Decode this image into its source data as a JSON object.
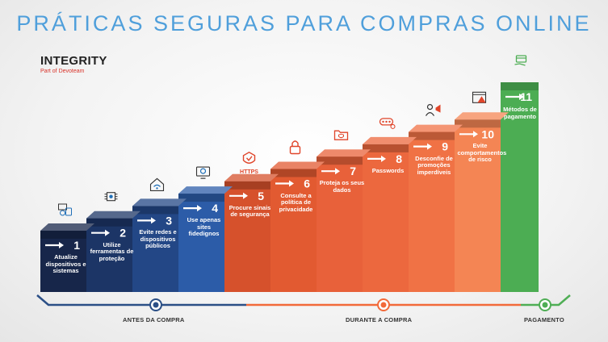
{
  "title": "PRÁTICAS SEGURAS PARA COMPRAS ONLINE",
  "logo": {
    "name": "INTEGRITY",
    "tagline": "Part of Devoteam"
  },
  "steps": [
    {
      "number": "1",
      "label": "Atualize dispositivos e sistemas",
      "phase": "antes",
      "icon": "devices-sync-icon"
    },
    {
      "number": "2",
      "label": "Utilize ferramentas de proteção",
      "phase": "antes",
      "icon": "chip-shield-icon"
    },
    {
      "number": "3",
      "label": "Evite redes e dispositivos públicos",
      "phase": "antes",
      "icon": "wifi-house-icon"
    },
    {
      "number": "4",
      "label": "Use apenas sites fidedignos",
      "phase": "antes",
      "icon": "secure-monitor-icon"
    },
    {
      "number": "5",
      "label": "Procure sinais de segurança",
      "phase": "durante",
      "icon": "https-shield-icon",
      "icon_text": "HTTPS"
    },
    {
      "number": "6",
      "label": "Consulte a política de privacidade",
      "phase": "durante",
      "icon": "padlock-icon"
    },
    {
      "number": "7",
      "label": "Proteja os seus dados",
      "phase": "durante",
      "icon": "shield-folder-icon"
    },
    {
      "number": "8",
      "label": "Passwords",
      "phase": "durante",
      "icon": "password-key-icon"
    },
    {
      "number": "9",
      "label": "Desconfie de promoções imperdíveis",
      "phase": "durante",
      "icon": "megaphone-user-icon"
    },
    {
      "number": "10",
      "label": "Evite comportamentos de risco",
      "phase": "durante",
      "icon": "alert-browser-icon"
    },
    {
      "number": "11",
      "label": "Métodos de pagamento",
      "phase": "pagamento",
      "icon": "card-hand-icon"
    }
  ],
  "phases": [
    {
      "id": "antes",
      "label": "ANTES DA COMPRA",
      "color": "#2b4f86"
    },
    {
      "id": "durante",
      "label": "DURANTE A COMPRA",
      "color": "#f26a3a"
    },
    {
      "id": "pagamento",
      "label": "PAGAMENTO",
      "color": "#4fae55"
    }
  ],
  "colors": {
    "title": "#4f9fdb",
    "navy": [
      "#17264a",
      "#1c3566",
      "#234786",
      "#2c5ca8"
    ],
    "orange": [
      "#d6512c",
      "#e25a31",
      "#e8613a",
      "#ec683e",
      "#f07245",
      "#f48554"
    ],
    "green": "#4cad53"
  }
}
